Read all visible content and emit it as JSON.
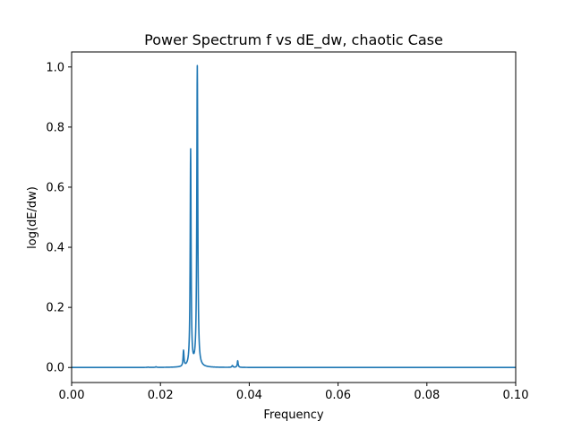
{
  "chart_data": {
    "type": "line",
    "title": "Power Spectrum f vs dE_dw, chaotic Case",
    "xlabel": "Frequency",
    "ylabel": "log(dE/dw)",
    "xlim": [
      0.0,
      0.1
    ],
    "ylim": [
      -0.05,
      1.05
    ],
    "xticks": [
      0.0,
      0.02,
      0.04,
      0.06,
      0.08,
      0.1
    ],
    "xtick_labels": [
      "0.00",
      "0.02",
      "0.04",
      "0.06",
      "0.08",
      "0.10"
    ],
    "yticks": [
      0.0,
      0.2,
      0.4,
      0.6,
      0.8,
      1.0
    ],
    "ytick_labels": [
      "0.0",
      "0.2",
      "0.4",
      "0.6",
      "0.8",
      "1.0"
    ],
    "grid": false,
    "legend": "none",
    "series_color": "#1f77b4",
    "peaks": [
      {
        "x": 0.0172,
        "y": 0.001,
        "width": 0.00015
      },
      {
        "x": 0.019,
        "y": 0.002,
        "width": 0.00015
      },
      {
        "x": 0.0252,
        "y": 0.052,
        "width": 0.00012
      },
      {
        "x": 0.0268,
        "y": 0.72,
        "width": 0.00012
      },
      {
        "x": 0.0283,
        "y": 1.0,
        "width": 0.00013
      },
      {
        "x": 0.0362,
        "y": 0.006,
        "width": 0.00015
      },
      {
        "x": 0.0374,
        "y": 0.022,
        "width": 0.00012
      }
    ]
  }
}
